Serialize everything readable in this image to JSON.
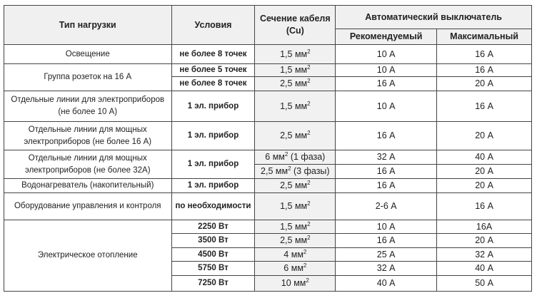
{
  "header": {
    "load_type": "Тип нагрузки",
    "conditions": "Условия",
    "cable_section": "Сечение кабеля",
    "cable_material": "(Cu)",
    "breaker": "Автоматический выключатель",
    "recommended": "Рекомендуемый",
    "maximum": "Максимальный"
  },
  "unit": "мм",
  "unit_power": "2",
  "groups": [
    {
      "load": "Освещение",
      "rows": [
        {
          "cond": "не более 8 точек",
          "sec": "1,5",
          "sec_suffix": "",
          "rec": "10 А",
          "max": "16 А"
        }
      ]
    },
    {
      "load": "Группа розеток на 16 А",
      "rows": [
        {
          "cond": "не более 5 точек",
          "sec": "1,5",
          "sec_suffix": "",
          "rec": "10 А",
          "max": "16 А"
        },
        {
          "cond": "не более 8 точек",
          "sec": "2,5",
          "sec_suffix": "",
          "rec": "16 А",
          "max": "20 А"
        }
      ]
    },
    {
      "load": "Отдельные линии для электроприборов (не более 10 А)",
      "rows": [
        {
          "cond": "1 эл. прибор",
          "sec": "1,5",
          "sec_suffix": "",
          "rec": "10 А",
          "max": "16 А"
        }
      ]
    },
    {
      "load": "Отдельные линии для мощных электроприборов (не более 16 А)",
      "rows": [
        {
          "cond": "1 эл. прибор",
          "sec": "2,5",
          "sec_suffix": "",
          "rec": "16 А",
          "max": "20 А"
        }
      ]
    },
    {
      "load": "Отдельные линии для мощных электроприборов (не более 32А)",
      "rows": [
        {
          "cond": "1 эл. прибор",
          "sec": "6",
          "sec_suffix": " (1 фаза)",
          "rec": "32 А",
          "max": "40 А"
        },
        {
          "cond": "",
          "sec": "2,5",
          "sec_suffix": " (3 фазы)",
          "rec": "16 А",
          "max": "20 А"
        }
      ]
    },
    {
      "load": "Водонагреватель (накопительный)",
      "rows": [
        {
          "cond": "1 эл. прибор",
          "sec": "2,5",
          "sec_suffix": "",
          "rec": "16 А",
          "max": "20 А"
        }
      ]
    },
    {
      "load": "Оборудование управления и контроля",
      "rows": [
        {
          "cond": "по необходимости",
          "sec": "1,5",
          "sec_suffix": "",
          "rec": "2-6 А",
          "max": "16 А"
        }
      ]
    },
    {
      "load": "Электрическое отопление",
      "rows": [
        {
          "cond": "2250 Вт",
          "sec": "1,5",
          "sec_suffix": "",
          "rec": "10 А",
          "max": "16А"
        },
        {
          "cond": "3500 Вт",
          "sec": "2,5",
          "sec_suffix": "",
          "rec": "16 А",
          "max": "20 А"
        },
        {
          "cond": "4500 Вт",
          "sec": "4",
          "sec_suffix": "",
          "rec": "25 А",
          "max": "32 А"
        },
        {
          "cond": "5750 Вт",
          "sec": "6",
          "sec_suffix": "",
          "rec": "32 А",
          "max": "40 А"
        },
        {
          "cond": "7250 Вт",
          "sec": "10",
          "sec_suffix": "",
          "rec": "40 А",
          "max": "50 А"
        }
      ]
    }
  ]
}
